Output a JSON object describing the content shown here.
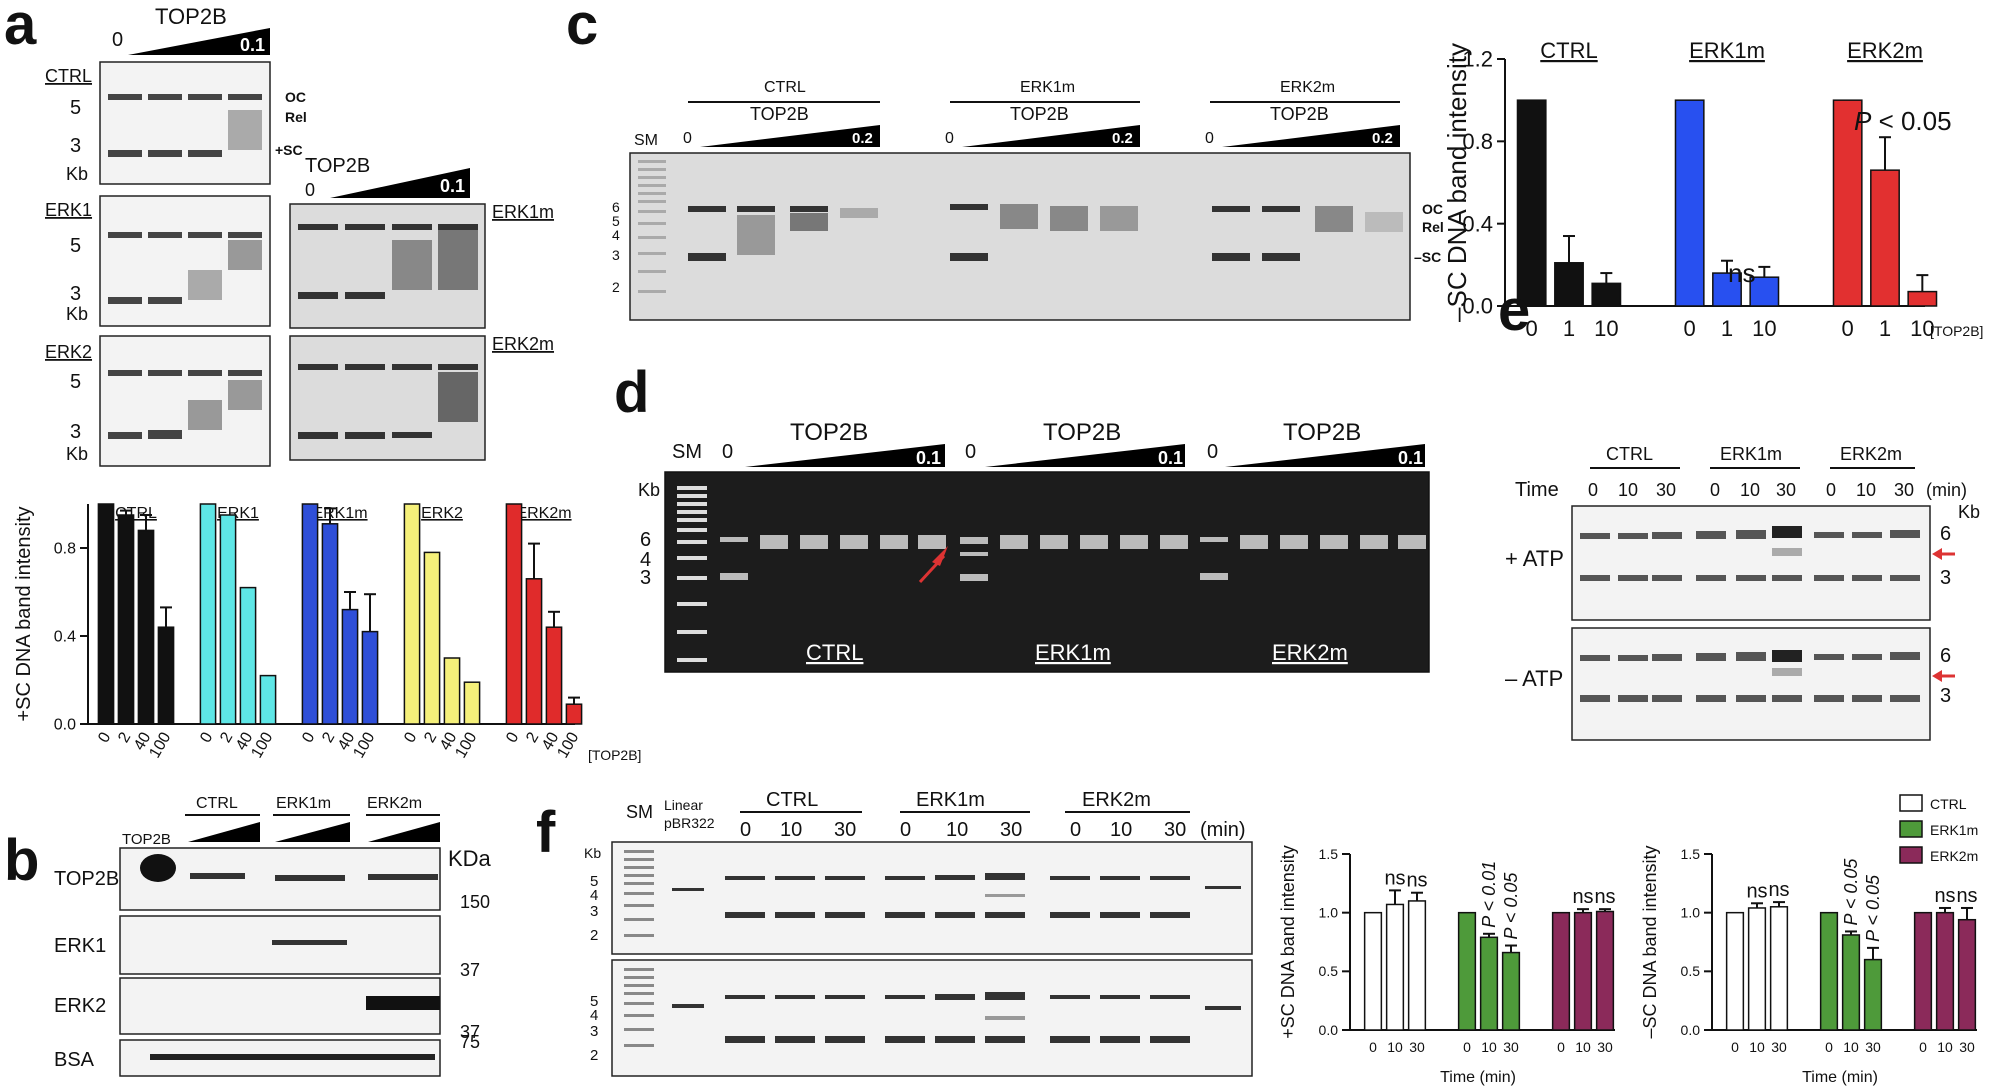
{
  "panels": {
    "a": "a",
    "b": "b",
    "c": "c",
    "d": "d",
    "e": "e",
    "f": "f"
  },
  "common": {
    "top2b": "TOP2B",
    "zero": "0",
    "conc_a": "0.1",
    "conc_c": "0.2",
    "kb": "Kb",
    "kda": "KDa",
    "sm": "SM",
    "oc": "OC",
    "rel": "Rel",
    "sc_plus": "+SC",
    "sc_minus": "–SC",
    "tick3": "3",
    "tick5": "5",
    "tick6": "6",
    "tick4": "4",
    "tick2": "2",
    "ns": "ns",
    "p005": "P < 0.05",
    "p001": "P < 0.01",
    "p_ital": "P",
    "p_rest": " < 0.05"
  },
  "panel_a": {
    "gel_labels": [
      "CTRL",
      "ERK1",
      "ERK2",
      "ERK1m",
      "ERK2m"
    ]
  },
  "panel_b": {
    "groups": [
      "CTRL",
      "ERK1m",
      "ERK2m"
    ],
    "rows": [
      "TOP2B",
      "ERK1",
      "ERK2",
      "BSA"
    ],
    "lane_top2b": "TOP2B",
    "mw": [
      "150",
      "37",
      "37",
      "75"
    ]
  },
  "panel_c": {
    "groups": [
      "CTRL",
      "ERK1m",
      "ERK2m"
    ],
    "ticks": [
      "6",
      "5",
      "4",
      "3",
      "2"
    ]
  },
  "panel_d": {
    "groups": [
      "CTRL",
      "ERK1m",
      "ERK2m"
    ],
    "ticks": [
      "6",
      "4",
      "3"
    ]
  },
  "panel_e": {
    "groups": [
      "CTRL",
      "ERK1m",
      "ERK2m"
    ],
    "time_label": "Time",
    "times": [
      "0",
      "10",
      "30"
    ],
    "min": "(min)",
    "rows": [
      "+ ATP",
      "– ATP"
    ]
  },
  "panel_f": {
    "groups": [
      "CTRL",
      "ERK1m",
      "ERK2m"
    ],
    "linear": [
      "Linear",
      "pBR322"
    ],
    "times": [
      "0",
      "10",
      "30"
    ],
    "min": "(min)",
    "ticks": [
      "5",
      "4",
      "3",
      "2"
    ]
  },
  "chart_data": [
    {
      "type": "bar",
      "panel": "a",
      "ylabel": "+SC DNA band intensity",
      "xlabel": "[TOP2B]",
      "ylim": [
        0,
        1.0
      ],
      "yticks": [
        "0.0",
        "0.4",
        "0.8"
      ],
      "categories": [
        "0",
        "2",
        "40",
        "100"
      ],
      "series": [
        {
          "name": "CTRL",
          "color": "#111111",
          "values": [
            1.0,
            0.95,
            0.88,
            0.44
          ],
          "err": [
            0,
            0.02,
            0.07,
            0.09
          ]
        },
        {
          "name": "ERK1",
          "color": "#5ee6e6",
          "values": [
            1.0,
            0.95,
            0.62,
            0.22
          ],
          "err": [
            0,
            0,
            0,
            0
          ]
        },
        {
          "name": "ERK1m",
          "color": "#2f4fd8",
          "values": [
            1.0,
            0.91,
            0.52,
            0.42
          ],
          "err": [
            0,
            0.07,
            0.08,
            0.17
          ]
        },
        {
          "name": "ERK2",
          "color": "#f5f07a",
          "values": [
            1.0,
            0.78,
            0.3,
            0.19
          ],
          "err": [
            0,
            0,
            0,
            0
          ]
        },
        {
          "name": "ERK2m",
          "color": "#e02b2b",
          "values": [
            1.0,
            0.66,
            0.44,
            0.09
          ],
          "err": [
            0,
            0.16,
            0.07,
            0.03
          ]
        }
      ]
    },
    {
      "type": "bar",
      "panel": "c",
      "ylabel": "–SC DNA band intensity",
      "xlabel": "[TOP2B]",
      "ylim": [
        0,
        1.2
      ],
      "yticks": [
        "0.0",
        "0.4",
        "0.8",
        "1.2"
      ],
      "categories": [
        "0",
        "1",
        "10"
      ],
      "series": [
        {
          "name": "CTRL",
          "color": "#111111",
          "values": [
            1.0,
            0.21,
            0.11
          ],
          "err": [
            0,
            0.13,
            0.05
          ]
        },
        {
          "name": "ERK1m",
          "color": "#2850f0",
          "values": [
            1.0,
            0.16,
            0.14
          ],
          "err": [
            0,
            0.06,
            0.05
          ]
        },
        {
          "name": "ERK2m",
          "color": "#e23030",
          "values": [
            1.0,
            0.66,
            0.07
          ],
          "err": [
            0,
            0.16,
            0.08
          ]
        }
      ],
      "annotations": [
        "ns",
        "P < 0.05"
      ]
    },
    {
      "type": "bar",
      "panel": "f-left",
      "ylabel": "+SC DNA band intensity",
      "xlabel": "Time (min)",
      "ylim": [
        0,
        1.5
      ],
      "yticks": [
        "0.0",
        "0.5",
        "1.0",
        "1.5"
      ],
      "categories": [
        "0",
        "10",
        "30"
      ],
      "series": [
        {
          "name": "CTRL",
          "color": "#ffffff",
          "values": [
            1.0,
            1.07,
            1.1
          ],
          "err": [
            0,
            0.12,
            0.07
          ]
        },
        {
          "name": "ERK1m",
          "color": "#4e9a3a",
          "values": [
            1.0,
            0.79,
            0.66
          ],
          "err": [
            0,
            0.03,
            0.06
          ]
        },
        {
          "name": "ERK2m",
          "color": "#8b2a5a",
          "values": [
            1.0,
            1.0,
            1.01
          ],
          "err": [
            0,
            0.03,
            0.02
          ]
        }
      ],
      "annotations": [
        "ns",
        "ns",
        "P < 0.01",
        "P < 0.05",
        "ns",
        "ns"
      ]
    },
    {
      "type": "bar",
      "panel": "f-right",
      "ylabel": "–SC DNA band intensity",
      "xlabel": "Time (min)",
      "ylim": [
        0,
        1.5
      ],
      "yticks": [
        "0.0",
        "0.5",
        "1.0",
        "1.5"
      ],
      "categories": [
        "0",
        "10",
        "30"
      ],
      "legend": [
        "CTRL",
        "ERK1m",
        "ERK2m"
      ],
      "series": [
        {
          "name": "CTRL",
          "color": "#ffffff",
          "values": [
            1.0,
            1.04,
            1.05
          ],
          "err": [
            0,
            0.04,
            0.04
          ]
        },
        {
          "name": "ERK1m",
          "color": "#4e9a3a",
          "values": [
            1.0,
            0.81,
            0.6
          ],
          "err": [
            0,
            0.03,
            0.1
          ]
        },
        {
          "name": "ERK2m",
          "color": "#8b2a5a",
          "values": [
            1.0,
            1.0,
            0.94
          ],
          "err": [
            0,
            0.04,
            0.1
          ]
        }
      ],
      "annotations": [
        "ns",
        "ns",
        "P < 0.05",
        "P < 0.05",
        "ns",
        "ns"
      ]
    }
  ]
}
